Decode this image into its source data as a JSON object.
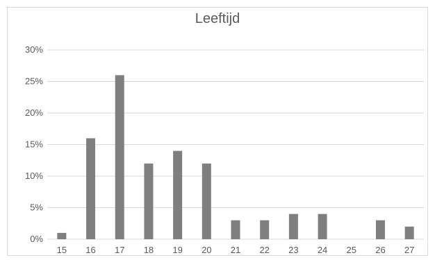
{
  "chart_data": {
    "type": "bar",
    "title": "Leeftijd",
    "xlabel": "",
    "ylabel": "",
    "categories": [
      "15",
      "16",
      "17",
      "18",
      "19",
      "20",
      "21",
      "22",
      "23",
      "24",
      "25",
      "26",
      "27"
    ],
    "values": [
      1,
      16,
      26,
      12,
      14,
      12,
      3,
      3,
      4,
      4,
      0,
      3,
      2
    ],
    "value_unit": "%",
    "ylim": [
      0,
      30
    ],
    "y_ticks": [
      "0%",
      "5%",
      "10%",
      "15%",
      "20%",
      "25%",
      "30%"
    ],
    "grid": true,
    "legend": "none",
    "colors": {
      "bar": "#7f7f7f",
      "grid": "#d9d9d9",
      "text": "#595959"
    }
  }
}
